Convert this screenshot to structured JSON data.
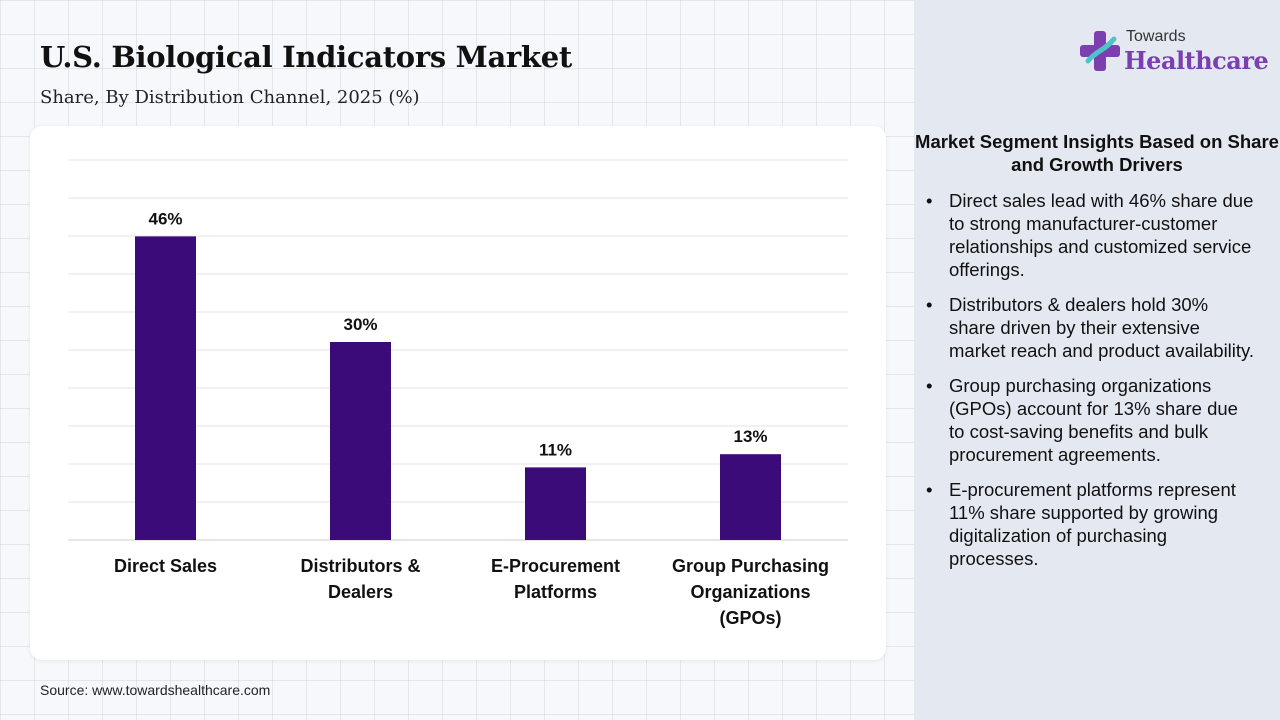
{
  "header": {
    "title": "U.S. Biological Indicators Market",
    "subtitle": "Share, By Distribution Channel, 2025 (%)"
  },
  "logo": {
    "line1": "Towards",
    "line2": "Healthcare",
    "colors": {
      "primary": "#7b3fb0",
      "secondary": "#4fc3c8"
    }
  },
  "chart_data": {
    "type": "bar",
    "title": "U.S. Biological Indicators Market",
    "subtitle": "Share, By Distribution Channel, 2025 (%)",
    "categories": [
      "Direct Sales",
      "Distributors & Dealers",
      "E-Procurement Platforms",
      "Group Purchasing Organizations (GPOs)"
    ],
    "category_lines": [
      [
        "Direct Sales"
      ],
      [
        "Distributors &",
        "Dealers"
      ],
      [
        "E-Procurement",
        "Platforms"
      ],
      [
        "Group Purchasing",
        "Organizations",
        "(GPOs)"
      ]
    ],
    "values": [
      46,
      30,
      11,
      13
    ],
    "value_labels": [
      "46%",
      "30%",
      "11%",
      "13%"
    ],
    "unit": "%",
    "ylim": [
      0,
      50
    ],
    "grid": true,
    "legend": "none",
    "bar_color": "#3b0b7a"
  },
  "insights": {
    "title": "Market Segment Insights Based on Share and Growth Drivers",
    "items": [
      "Direct sales lead with 46% share due to strong manufacturer-customer relationships and customized service offerings.",
      "Distributors & dealers hold 30% share driven by their extensive market reach and product availability.",
      "Group purchasing organizations (GPOs) account for 13% share due to cost-saving benefits and bulk procurement agreements.",
      "E-procurement platforms represent 11% share supported by growing digitalization of purchasing processes."
    ]
  },
  "footer": {
    "source": "Source: www.towardshealthcare.com"
  }
}
